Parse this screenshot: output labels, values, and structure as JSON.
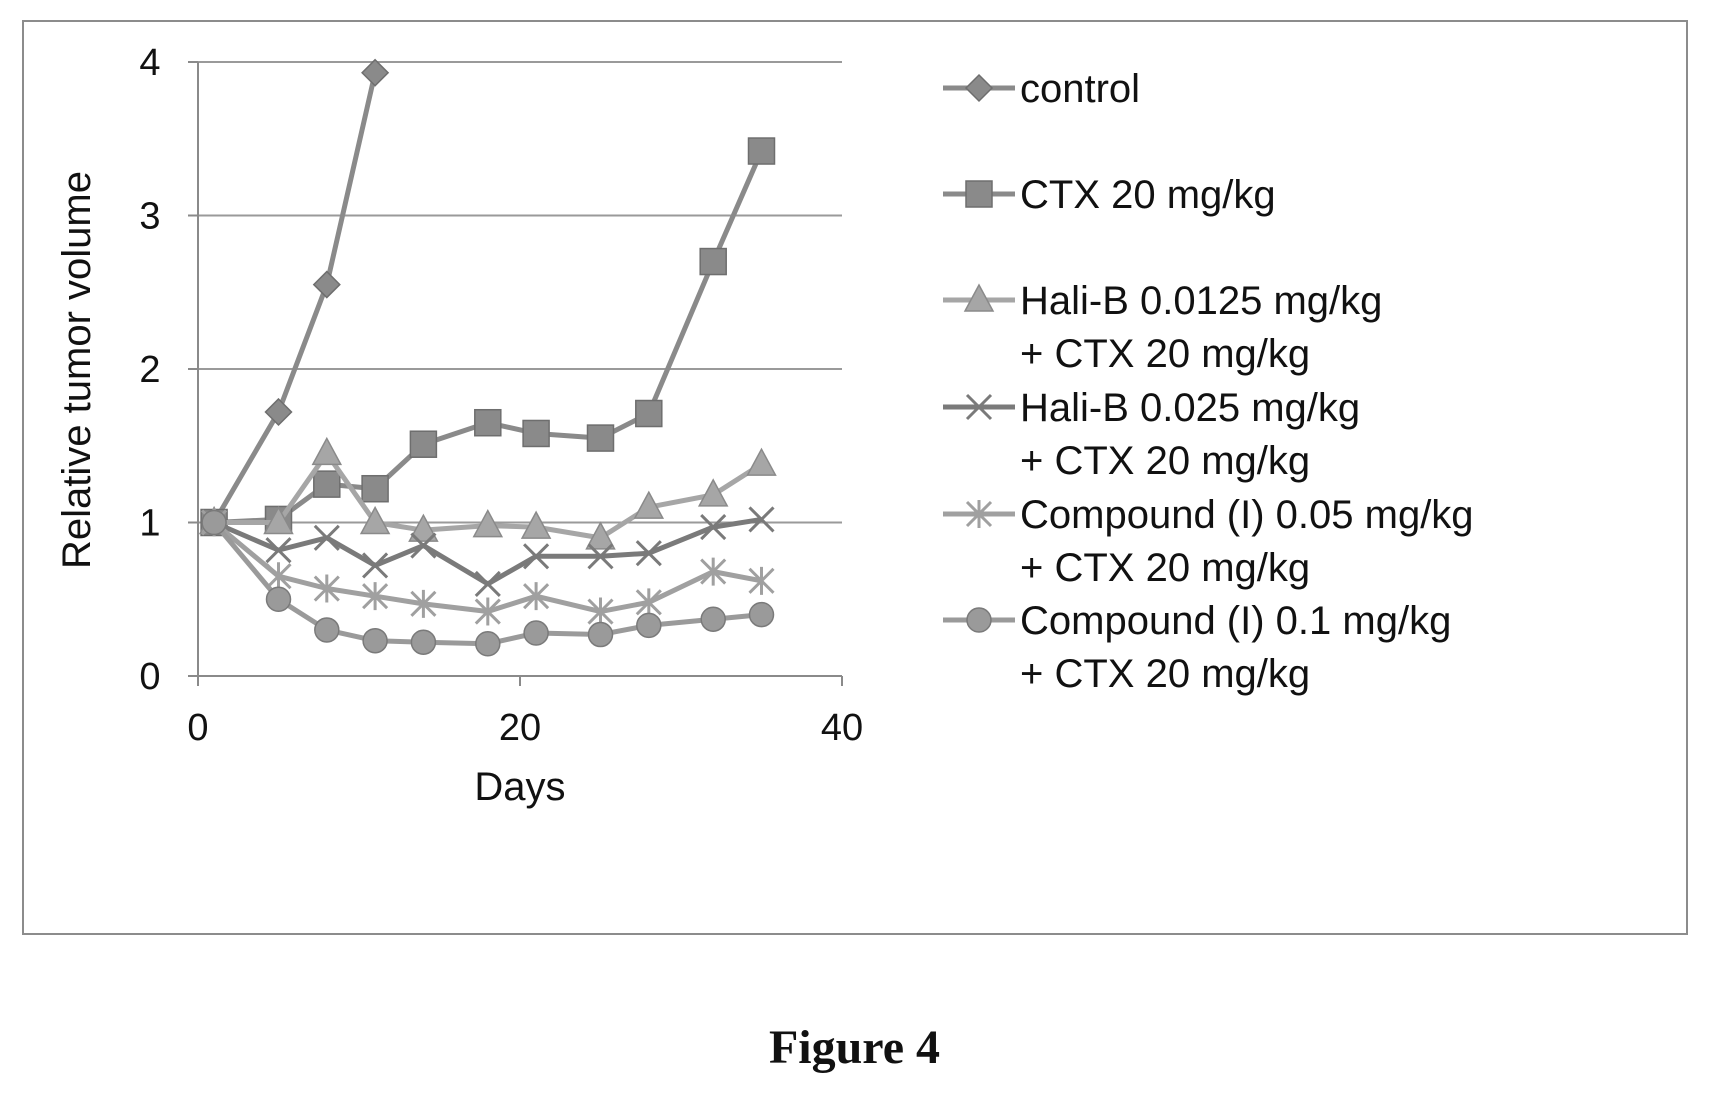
{
  "caption": "Figure 4",
  "chart_data": {
    "type": "line",
    "title": "",
    "xlabel": "Days",
    "ylabel": "Relative tumor volume",
    "xlim": [
      0,
      40
    ],
    "ylim": [
      0,
      4
    ],
    "xticks": [
      0,
      20,
      40
    ],
    "yticks": [
      0,
      1,
      2,
      3,
      4
    ],
    "grid": "horizontal",
    "legend_position": "right",
    "series": [
      {
        "name_lines": [
          "control"
        ],
        "marker": "diamond",
        "color": "#8a8a8a",
        "x": [
          1,
          5,
          8,
          11
        ],
        "y": [
          1.0,
          1.72,
          2.55,
          3.93
        ]
      },
      {
        "name_lines": [
          "CTX 20 mg/kg"
        ],
        "marker": "square",
        "color": "#8a8a8a",
        "x": [
          1,
          5,
          8,
          11,
          14,
          18,
          21,
          25,
          28,
          32,
          35
        ],
        "y": [
          1.0,
          1.02,
          1.25,
          1.22,
          1.51,
          1.65,
          1.58,
          1.55,
          1.71,
          2.7,
          3.42
        ]
      },
      {
        "name_lines": [
          "Hali-B 0.0125 mg/kg",
          "+ CTX 20 mg/kg"
        ],
        "marker": "triangle",
        "color": "#a6a6a6",
        "x": [
          1,
          5,
          8,
          11,
          14,
          18,
          21,
          25,
          28,
          32,
          35
        ],
        "y": [
          1.0,
          1.0,
          1.45,
          1.0,
          0.95,
          0.98,
          0.97,
          0.9,
          1.1,
          1.18,
          1.38
        ]
      },
      {
        "name_lines": [
          "Hali-B 0.025 mg/kg",
          "+ CTX 20 mg/kg"
        ],
        "marker": "x",
        "color": "#7a7a7a",
        "x": [
          1,
          5,
          8,
          11,
          14,
          18,
          21,
          25,
          28,
          32,
          35
        ],
        "y": [
          1.0,
          0.82,
          0.9,
          0.72,
          0.85,
          0.6,
          0.78,
          0.78,
          0.8,
          0.97,
          1.02
        ]
      },
      {
        "name_lines": [
          "Compound (I) 0.05 mg/kg",
          "+ CTX 20 mg/kg"
        ],
        "marker": "star",
        "color": "#a0a0a0",
        "x": [
          1,
          5,
          8,
          11,
          14,
          18,
          21,
          25,
          28,
          32,
          35
        ],
        "y": [
          1.0,
          0.65,
          0.57,
          0.52,
          0.47,
          0.42,
          0.52,
          0.42,
          0.48,
          0.68,
          0.62
        ]
      },
      {
        "name_lines": [
          "Compound (I) 0.1 mg/kg",
          "+ CTX 20 mg/kg"
        ],
        "marker": "circle",
        "color": "#9a9a9a",
        "x": [
          1,
          5,
          8,
          11,
          14,
          18,
          21,
          25,
          28,
          32,
          35
        ],
        "y": [
          1.0,
          0.5,
          0.3,
          0.23,
          0.22,
          0.21,
          0.28,
          0.27,
          0.33,
          0.37,
          0.4
        ]
      }
    ]
  }
}
